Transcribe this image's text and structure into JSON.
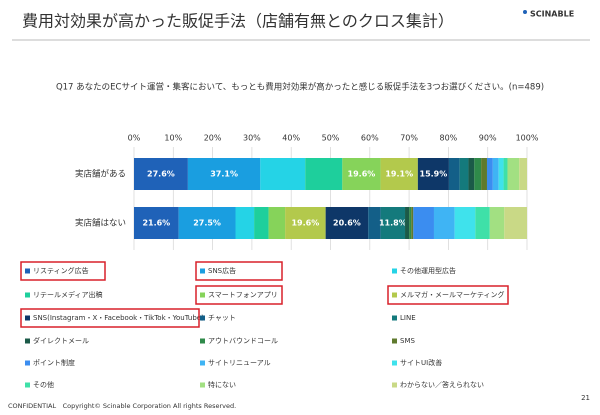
{
  "header": {
    "title": "費用対効果が高かった販促手法（店舗有無とのクロス集計）",
    "logo": "SCINABLE"
  },
  "footer": {
    "copyright": "CONFIDENTIAL　Copyright© Scinable Corporation All rights Reserved.",
    "page": "21"
  },
  "chart_data": {
    "type": "stacked-bar-100",
    "title": "Q17 あなたのECサイト運営・集客において、もっとも費用対効果が高かったと感じる販促手法を3つお選びください。(n=489)",
    "categories": [
      "実店舗がある",
      "実店舗はない"
    ],
    "xlim": [
      0,
      100
    ],
    "xticks": [
      {
        "value": 0,
        "label": "0%"
      },
      {
        "value": 10,
        "label": "10%"
      },
      {
        "value": 20,
        "label": "20%"
      },
      {
        "value": 30,
        "label": "30%"
      },
      {
        "value": 40,
        "label": "40%"
      },
      {
        "value": 50,
        "label": "50%"
      },
      {
        "value": 60,
        "label": "60%"
      },
      {
        "value": 70,
        "label": "70%"
      },
      {
        "value": 80,
        "label": "80%"
      },
      {
        "value": 90,
        "label": "90%"
      },
      {
        "value": 100,
        "label": "100%"
      }
    ],
    "grid": true,
    "highlighted": [
      0,
      1,
      4,
      5,
      6
    ],
    "series": [
      {
        "name": "リスティング広告",
        "color": "#1f62b8",
        "values": [
          27.6,
          21.6
        ],
        "value_labels": [
          "27.6%",
          "21.6%"
        ]
      },
      {
        "name": "SNS広告",
        "color": "#1a9ee0",
        "values": [
          37.1,
          27.5
        ],
        "value_labels": [
          "37.1%",
          "27.5%"
        ]
      },
      {
        "name": "その他運用型広告",
        "color": "#25d3e6",
        "values": [
          23.0,
          9.0
        ],
        "value_labels": [
          null,
          null
        ]
      },
      {
        "name": "リテールメディア出稿",
        "color": "#1ecf9c",
        "values": [
          19.0,
          7.0
        ],
        "value_labels": [
          null,
          null
        ]
      },
      {
        "name": "スマートフォンアプリ",
        "color": "#86d35a",
        "values": [
          19.6,
          8.0
        ],
        "value_labels": [
          "19.6%",
          null
        ]
      },
      {
        "name": "メルマガ・メールマーケティング",
        "color": "#b3c94c",
        "values": [
          19.1,
          19.6
        ],
        "value_labels": [
          "19.1%",
          "19.6%"
        ]
      },
      {
        "name": "SNS(Instagram・X・Facebook・TikTok・YouTube)",
        "color": "#0e3768",
        "values": [
          15.9,
          20.6
        ],
        "value_labels": [
          "15.9%",
          "20.6%"
        ]
      },
      {
        "name": "チャット",
        "color": "#135f88",
        "values": [
          5.5,
          6.0
        ],
        "value_labels": [
          null,
          null
        ]
      },
      {
        "name": "LINE",
        "color": "#147a7c",
        "values": [
          4.5,
          11.8
        ],
        "value_labels": [
          null,
          "11.8%"
        ]
      },
      {
        "name": "ダイレクトメール",
        "color": "#1b5a48",
        "values": [
          3.0,
          2.0
        ],
        "value_labels": [
          null,
          null
        ]
      },
      {
        "name": "アウトバウンドコール",
        "color": "#2f8a4a",
        "values": [
          3.5,
          1.0
        ],
        "value_labels": [
          null,
          null
        ]
      },
      {
        "name": "SMS",
        "color": "#5f7a2e",
        "values": [
          3.0,
          1.0
        ],
        "value_labels": [
          null,
          null
        ]
      },
      {
        "name": "ポイント制度",
        "color": "#3b8df0",
        "values": [
          3.0,
          10.0
        ],
        "value_labels": [
          null,
          null
        ]
      },
      {
        "name": "サイトリニューアル",
        "color": "#3fb4f4",
        "values": [
          3.0,
          10.0
        ],
        "value_labels": [
          null,
          null
        ]
      },
      {
        "name": "サイトUI改善",
        "color": "#3fe2ec",
        "values": [
          2.5,
          10.0
        ],
        "value_labels": [
          null,
          null
        ]
      },
      {
        "name": "その他",
        "color": "#3fe0a8",
        "values": [
          2.0,
          7.0
        ],
        "value_labels": [
          null,
          null
        ]
      },
      {
        "name": "特にない",
        "color": "#a2e082",
        "values": [
          6.0,
          7.0
        ],
        "value_labels": [
          null,
          null
        ]
      },
      {
        "name": "わからない／答えられない",
        "color": "#c9d986",
        "values": [
          4.0,
          11.0
        ],
        "value_labels": [
          null,
          null
        ]
      }
    ]
  }
}
